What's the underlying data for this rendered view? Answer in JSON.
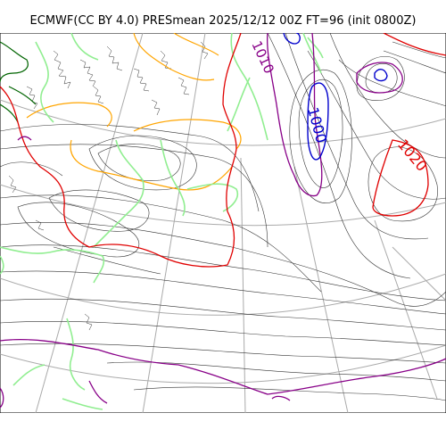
{
  "title": "ECMWF(CC BY 4.0) PRESmean 2025/12/12 00Z FT=96 (init 0800Z)",
  "contour_labels": {
    "low_left": "1010",
    "low_center": "1000",
    "high_right": "1020"
  },
  "colors": {
    "isobar_thin": "#333333",
    "isobar_1020": "#e00000",
    "isobar_1010": "#880088",
    "isobar_1000": "#0000cc",
    "coast_green": "#90ee90",
    "orange": "#ffa500",
    "dark_green": "#006400",
    "grid": "#aaaaaa"
  }
}
